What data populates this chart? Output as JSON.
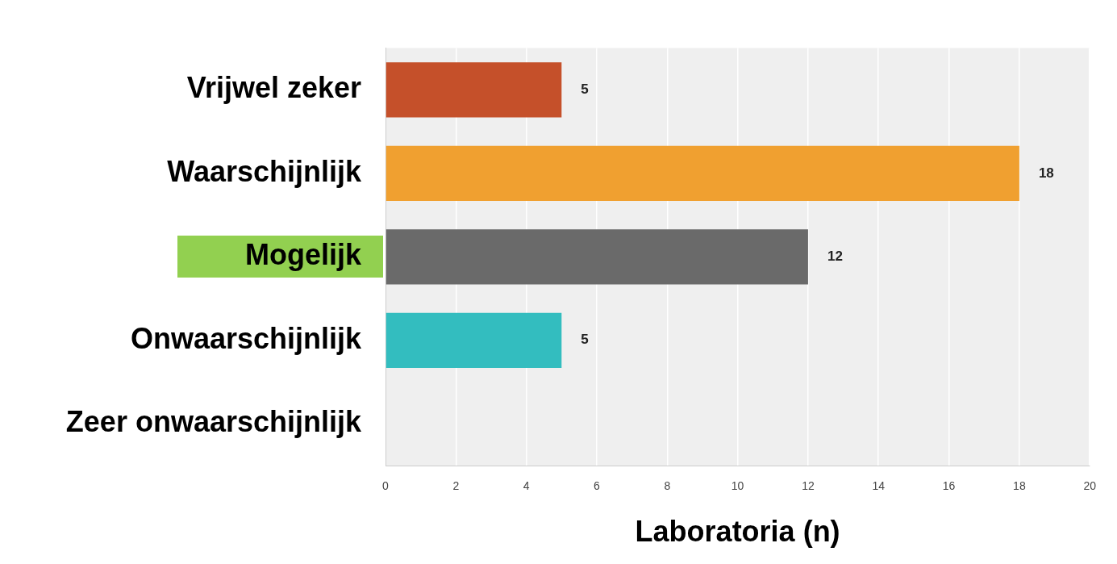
{
  "chart_data": {
    "type": "bar",
    "orientation": "horizontal",
    "xlabel": "Laboratoria (n)",
    "categories": [
      "Vrijwel zeker",
      "Waarschijnlijk",
      "Mogelijk",
      "Onwaarschijnlijk",
      "Zeer onwaarschijnlijk"
    ],
    "values": [
      5,
      18,
      12,
      5,
      0
    ],
    "colors": [
      "#c5502a",
      "#f0a030",
      "#6a6a6a",
      "#33bdbf",
      "#33bdbf"
    ],
    "value_labels": [
      "5",
      "18",
      "12",
      "5",
      null
    ],
    "xlim": [
      0,
      20
    ],
    "xticks": [
      0,
      2,
      4,
      6,
      8,
      10,
      12,
      14,
      16,
      18,
      20
    ],
    "grid": "x",
    "legend": false
  }
}
